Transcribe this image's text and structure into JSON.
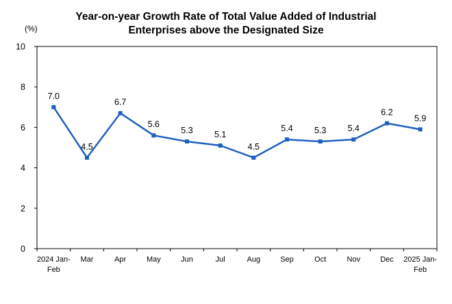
{
  "chart_data": {
    "type": "line",
    "title_lines": [
      "Year-on-year Growth Rate of Total Value Added of Industrial",
      "Enterprises above the Designated Size"
    ],
    "unit_label": "(%)",
    "categories": [
      [
        "2024 Jan-",
        "Feb"
      ],
      [
        "Mar"
      ],
      [
        "Apr"
      ],
      [
        "May"
      ],
      [
        "Jun"
      ],
      [
        "Jul"
      ],
      [
        "Aug"
      ],
      [
        "Sep"
      ],
      [
        "Oct"
      ],
      [
        "Nov"
      ],
      [
        "Dec"
      ],
      [
        "2025 Jan-",
        "Feb"
      ]
    ],
    "values": [
      7.0,
      4.5,
      6.7,
      5.6,
      5.3,
      5.1,
      4.5,
      5.4,
      5.3,
      5.4,
      6.2,
      5.9
    ],
    "value_labels": [
      "7.0",
      "4.5",
      "6.7",
      "5.6",
      "5.3",
      "5.1",
      "4.5",
      "5.4",
      "5.3",
      "5.4",
      "6.2",
      "5.9"
    ],
    "y_ticks": [
      "0",
      "2",
      "4",
      "6",
      "8",
      "10"
    ],
    "ylim": [
      0,
      10
    ],
    "grid": false,
    "legend": "none",
    "series_color": "#1f5fbf",
    "axis_color": "#000000"
  }
}
